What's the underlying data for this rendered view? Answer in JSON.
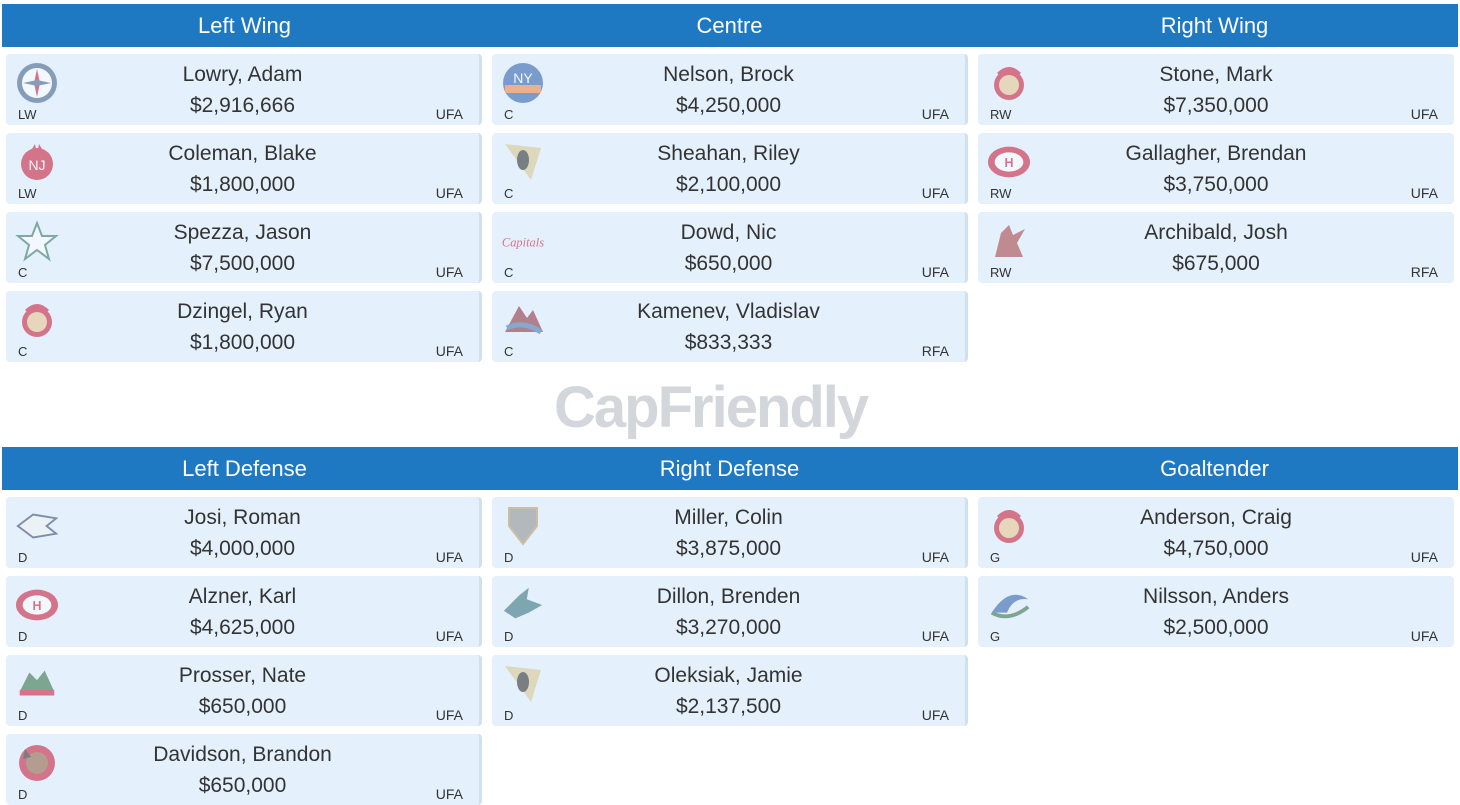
{
  "top_section": {
    "headers": [
      "Left Wing",
      "Centre",
      "Right Wing"
    ],
    "columns": [
      [
        {
          "name": "Lowry, Adam",
          "salary": "$2,916,666",
          "pos": "LW",
          "status": "UFA",
          "logo": "jets-logo-icon"
        },
        {
          "name": "Coleman, Blake",
          "salary": "$1,800,000",
          "pos": "LW",
          "status": "UFA",
          "logo": "devils-logo-icon"
        },
        {
          "name": "Spezza, Jason",
          "salary": "$7,500,000",
          "pos": "C",
          "status": "UFA",
          "logo": "stars-logo-icon"
        },
        {
          "name": "Dzingel, Ryan",
          "salary": "$1,800,000",
          "pos": "C",
          "status": "UFA",
          "logo": "senators-logo-icon"
        }
      ],
      [
        {
          "name": "Nelson, Brock",
          "salary": "$4,250,000",
          "pos": "C",
          "status": "UFA",
          "logo": "islanders-logo-icon"
        },
        {
          "name": "Sheahan, Riley",
          "salary": "$2,100,000",
          "pos": "C",
          "status": "UFA",
          "logo": "penguins-logo-icon"
        },
        {
          "name": "Dowd, Nic",
          "salary": "$650,000",
          "pos": "C",
          "status": "UFA",
          "logo": "capitals-logo-icon"
        },
        {
          "name": "Kamenev, Vladislav",
          "salary": "$833,333",
          "pos": "C",
          "status": "RFA",
          "logo": "avalanche-logo-icon"
        }
      ],
      [
        {
          "name": "Stone, Mark",
          "salary": "$7,350,000",
          "pos": "RW",
          "status": "UFA",
          "logo": "senators-logo-icon"
        },
        {
          "name": "Gallagher, Brendan",
          "salary": "$3,750,000",
          "pos": "RW",
          "status": "UFA",
          "logo": "canadiens-logo-icon"
        },
        {
          "name": "Archibald, Josh",
          "salary": "$675,000",
          "pos": "RW",
          "status": "RFA",
          "logo": "coyotes-logo-icon"
        }
      ]
    ]
  },
  "bottom_section": {
    "headers": [
      "Left Defense",
      "Right Defense",
      "Goaltender"
    ],
    "columns": [
      [
        {
          "name": "Josi, Roman",
          "salary": "$4,000,000",
          "pos": "D",
          "status": "UFA",
          "logo": "predators-logo-icon"
        },
        {
          "name": "Alzner, Karl",
          "salary": "$4,625,000",
          "pos": "D",
          "status": "UFA",
          "logo": "canadiens-logo-icon"
        },
        {
          "name": "Prosser, Nate",
          "salary": "$650,000",
          "pos": "D",
          "status": "UFA",
          "logo": "wild-logo-icon"
        },
        {
          "name": "Davidson, Brandon",
          "salary": "$650,000",
          "pos": "D",
          "status": "UFA",
          "logo": "blackhawks-logo-icon"
        }
      ],
      [
        {
          "name": "Miller, Colin",
          "salary": "$3,875,000",
          "pos": "D",
          "status": "UFA",
          "logo": "golden-knights-logo-icon"
        },
        {
          "name": "Dillon, Brenden",
          "salary": "$3,270,000",
          "pos": "D",
          "status": "UFA",
          "logo": "sharks-logo-icon"
        },
        {
          "name": "Oleksiak, Jamie",
          "salary": "$2,137,500",
          "pos": "D",
          "status": "UFA",
          "logo": "penguins-logo-icon"
        }
      ],
      [
        {
          "name": "Anderson, Craig",
          "salary": "$4,750,000",
          "pos": "G",
          "status": "UFA",
          "logo": "senators-logo-icon"
        },
        {
          "name": "Nilsson, Anders",
          "salary": "$2,500,000",
          "pos": "G",
          "status": "UFA",
          "logo": "canucks-logo-icon"
        }
      ]
    ]
  },
  "watermark": {
    "text_a": "Cap",
    "text_b": "Friendly"
  },
  "colors": {
    "header_bg": "#1e78c2",
    "card_bg": "#e4f0fb"
  }
}
